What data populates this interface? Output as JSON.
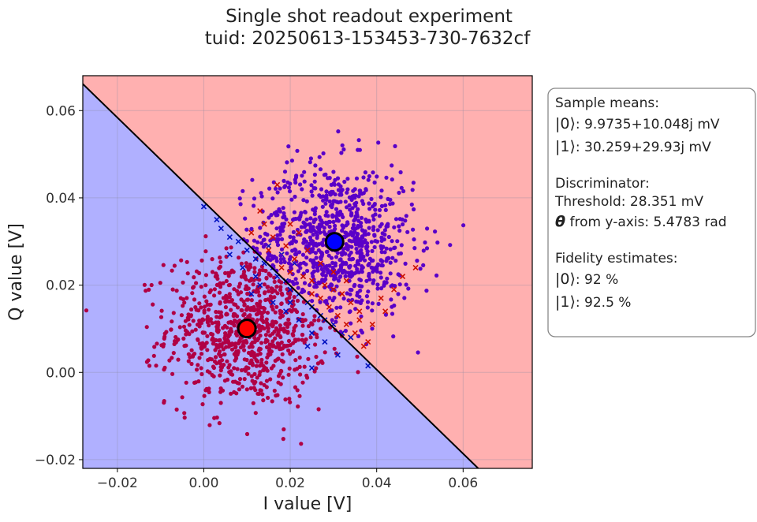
{
  "chart_data": {
    "type": "scatter",
    "title": "Single shot readout experiment",
    "subtitle": "tuid: 20250613-153453-730-7632cf",
    "xlabel": "I value [V]",
    "ylabel": "Q value [V]",
    "xlim": [
      -0.028,
      0.076
    ],
    "ylim": [
      -0.022,
      0.068
    ],
    "xticks": [
      -0.02,
      0.0,
      0.02,
      0.04,
      0.06
    ],
    "xtick_labels": [
      "−0.02",
      "0.00",
      "0.02",
      "0.04",
      "0.06"
    ],
    "yticks": [
      -0.02,
      0.0,
      0.02,
      0.04,
      0.06
    ],
    "ytick_labels": [
      "−0.02",
      "0.00",
      "0.02",
      "0.04",
      "0.06"
    ],
    "grid": true,
    "regions": {
      "state0_color": "#b0b0ff",
      "state1_color": "#ffb0b0",
      "boundary": {
        "points": [
          [
            -0.028,
            0.0661
          ],
          [
            0.0635,
            -0.022
          ]
        ],
        "color": "#000000"
      }
    },
    "means": [
      {
        "state": "|0⟩",
        "x": 0.0099735,
        "y": 0.010048,
        "color": "#ff0000"
      },
      {
        "state": "|1⟩",
        "x": 0.030259,
        "y": 0.02993,
        "color": "#0000ff"
      }
    ],
    "series": [
      {
        "label_state": "|0⟩",
        "correct_color": "#b00044",
        "misassigned_color": "#0010c0",
        "center": [
          0.0099735,
          0.010048
        ],
        "std": [
          0.0092,
          0.0088
        ],
        "n_correct": 850,
        "misassigned": [
          [
            0.0,
            0.038
          ],
          [
            0.003,
            0.035
          ],
          [
            0.004,
            0.033
          ],
          [
            0.006,
            0.031
          ],
          [
            0.008,
            0.03
          ],
          [
            0.01,
            0.028
          ],
          [
            0.012,
            0.026
          ],
          [
            0.014,
            0.025
          ],
          [
            0.016,
            0.024
          ],
          [
            0.017,
            0.022
          ],
          [
            0.019,
            0.021
          ],
          [
            0.02,
            0.019
          ],
          [
            0.022,
            0.018
          ],
          [
            0.024,
            0.016
          ],
          [
            0.025,
            0.015
          ],
          [
            0.027,
            0.013
          ],
          [
            0.028,
            0.012
          ],
          [
            0.03,
            0.011
          ],
          [
            0.032,
            0.009
          ],
          [
            0.034,
            0.008
          ],
          [
            0.015,
            0.029
          ],
          [
            0.018,
            0.027
          ],
          [
            0.021,
            0.025
          ],
          [
            0.023,
            0.022
          ],
          [
            0.026,
            0.02
          ],
          [
            0.013,
            0.02
          ],
          [
            0.011,
            0.018
          ],
          [
            0.016,
            0.016
          ],
          [
            0.019,
            0.014
          ],
          [
            0.022,
            0.012
          ],
          [
            0.025,
            0.009
          ],
          [
            0.028,
            0.007
          ],
          [
            0.031,
            0.004
          ],
          [
            0.025,
            0.001
          ],
          [
            0.038,
            0.0015
          ],
          [
            0.006,
            0.027
          ],
          [
            0.009,
            0.024
          ],
          [
            0.012,
            0.022
          ],
          [
            0.02,
            0.016
          ],
          [
            0.024,
            0.006
          ]
        ]
      },
      {
        "label_state": "|1⟩",
        "correct_color": "#5a00c8",
        "misassigned_color": "#cc1000",
        "center": [
          0.030259,
          0.02993
        ],
        "std": [
          0.0093,
          0.0088
        ],
        "n_correct": 860,
        "misassigned": [
          [
            0.017,
            0.043
          ],
          [
            0.014,
            0.034
          ],
          [
            0.016,
            0.031
          ],
          [
            0.015,
            0.028
          ],
          [
            0.018,
            0.024
          ],
          [
            0.02,
            0.023
          ],
          [
            0.021,
            0.026
          ],
          [
            0.023,
            0.022
          ],
          [
            0.025,
            0.018
          ],
          [
            0.027,
            0.017
          ],
          [
            0.029,
            0.015
          ],
          [
            0.031,
            0.013
          ],
          [
            0.033,
            0.011
          ],
          [
            0.035,
            0.009
          ],
          [
            0.037,
            0.006
          ],
          [
            0.038,
            0.007
          ],
          [
            0.03,
            0.023
          ],
          [
            0.028,
            0.02
          ],
          [
            0.032,
            0.018
          ],
          [
            0.034,
            0.016
          ],
          [
            0.036,
            0.014
          ],
          [
            0.041,
            0.017
          ],
          [
            0.044,
            0.019
          ],
          [
            0.049,
            0.024
          ],
          [
            0.046,
            0.022
          ],
          [
            0.027,
            0.025
          ],
          [
            0.024,
            0.028
          ],
          [
            0.02,
            0.034
          ],
          [
            0.011,
            0.032
          ],
          [
            0.013,
            0.037
          ],
          [
            0.039,
            0.011
          ],
          [
            0.042,
            0.014
          ],
          [
            0.019,
            0.029
          ],
          [
            0.022,
            0.032
          ],
          [
            0.025,
            0.021
          ],
          [
            0.03,
            0.019
          ],
          [
            0.033,
            0.021
          ],
          [
            0.036,
            0.012
          ]
        ]
      }
    ]
  },
  "legend": {
    "sample_means_header": "Sample means:",
    "mean0_state": "|0⟩",
    "mean0_value": ": 9.9735+10.048j mV",
    "mean1_state": "|1⟩",
    "mean1_value": ": 30.259+29.93j mV",
    "discriminator_header": "Discriminator:",
    "threshold": "Threshold: 28.351 mV",
    "theta_symbol": "θ",
    "theta_value": " from y-axis: 5.4783 rad",
    "fidelity_header": "Fidelity estimates:",
    "fid0_state": "|0⟩",
    "fid0_value": ": 92 %",
    "fid1_state": "|1⟩",
    "fid1_value": ": 92.5 %"
  }
}
